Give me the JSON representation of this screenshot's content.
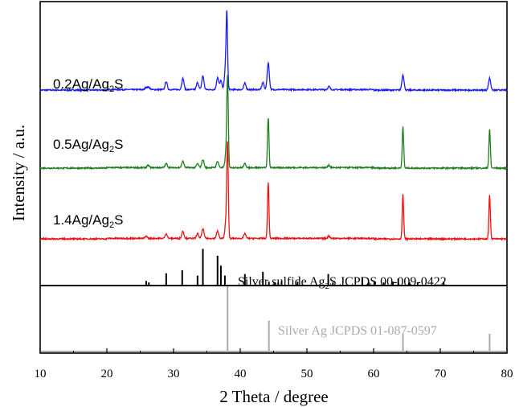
{
  "chart_data": {
    "type": "line",
    "xlabel": "2 Theta / degree",
    "ylabel": "Intensity / a.u.",
    "xlim": [
      10,
      80
    ],
    "x_ticks": [
      "10",
      "20",
      "30",
      "40",
      "50",
      "60",
      "70",
      "80"
    ],
    "colors": {
      "blue": "#1a1aff",
      "green": "#1f7f1f",
      "red": "#ee1111",
      "sulfide_ref": "#000000",
      "silver_ref": "#aaaaaa"
    },
    "series": [
      {
        "name": "0.2Ag/Ag2S",
        "label_main": "0.2Ag/Ag",
        "label_sub": "2",
        "label_end": "S",
        "color": "#1a1aff",
        "peaks": [
          {
            "x": 25.9,
            "y": 3
          },
          {
            "x": 26.3,
            "y": 3
          },
          {
            "x": 28.9,
            "y": 10
          },
          {
            "x": 31.4,
            "y": 14
          },
          {
            "x": 33.6,
            "y": 9
          },
          {
            "x": 34.4,
            "y": 17
          },
          {
            "x": 36.6,
            "y": 15
          },
          {
            "x": 37.1,
            "y": 11
          },
          {
            "x": 37.8,
            "y": 27
          },
          {
            "x": 38.0,
            "y": 86
          },
          {
            "x": 40.7,
            "y": 8
          },
          {
            "x": 43.4,
            "y": 9
          },
          {
            "x": 44.2,
            "y": 33
          },
          {
            "x": 53.3,
            "y": 4
          },
          {
            "x": 64.4,
            "y": 19
          },
          {
            "x": 77.4,
            "y": 15
          }
        ]
      },
      {
        "name": "0.5Ag/Ag2S",
        "label_main": "0.5Ag/Ag",
        "label_sub": "2",
        "label_end": "S",
        "color": "#1f7f1f",
        "peaks": [
          {
            "x": 26.2,
            "y": 3
          },
          {
            "x": 28.9,
            "y": 5
          },
          {
            "x": 31.4,
            "y": 8
          },
          {
            "x": 33.6,
            "y": 5
          },
          {
            "x": 34.4,
            "y": 10
          },
          {
            "x": 36.6,
            "y": 8
          },
          {
            "x": 37.9,
            "y": 20
          },
          {
            "x": 38.1,
            "y": 106
          },
          {
            "x": 40.7,
            "y": 5
          },
          {
            "x": 44.2,
            "y": 62
          },
          {
            "x": 53.3,
            "y": 3
          },
          {
            "x": 64.4,
            "y": 51
          },
          {
            "x": 77.4,
            "y": 48
          }
        ]
      },
      {
        "name": "1.4Ag/Ag2S",
        "label_main": "1.4Ag/Ag",
        "label_sub": "2",
        "label_end": "S",
        "color": "#ee1111",
        "peaks": [
          {
            "x": 25.9,
            "y": 3
          },
          {
            "x": 28.9,
            "y": 6
          },
          {
            "x": 31.4,
            "y": 9
          },
          {
            "x": 33.6,
            "y": 6
          },
          {
            "x": 34.4,
            "y": 12
          },
          {
            "x": 36.6,
            "y": 9
          },
          {
            "x": 37.9,
            "y": 25
          },
          {
            "x": 38.1,
            "y": 110
          },
          {
            "x": 40.7,
            "y": 6
          },
          {
            "x": 44.2,
            "y": 69
          },
          {
            "x": 53.3,
            "y": 3
          },
          {
            "x": 64.4,
            "y": 55
          },
          {
            "x": 77.4,
            "y": 55
          }
        ]
      }
    ],
    "references": [
      {
        "name": "Silver sulfide Ag2S JCPDS 00-009-0422",
        "label_main": "Silver sulfide Ag",
        "label_sub": "2",
        "label_end": "S JCPDS 00-009-0422",
        "color": "#000000",
        "lines": [
          {
            "x": 25.9,
            "y": 5
          },
          {
            "x": 26.3,
            "y": 3
          },
          {
            "x": 28.9,
            "y": 15
          },
          {
            "x": 31.3,
            "y": 19
          },
          {
            "x": 33.6,
            "y": 12
          },
          {
            "x": 34.4,
            "y": 47
          },
          {
            "x": 36.6,
            "y": 38
          },
          {
            "x": 37.1,
            "y": 25
          },
          {
            "x": 37.7,
            "y": 12
          },
          {
            "x": 40.7,
            "y": 14
          },
          {
            "x": 43.4,
            "y": 17
          },
          {
            "x": 44.3,
            "y": 4
          },
          {
            "x": 45.1,
            "y": 3
          },
          {
            "x": 45.7,
            "y": 3
          },
          {
            "x": 46.2,
            "y": 5
          },
          {
            "x": 48.6,
            "y": 4
          },
          {
            "x": 53.2,
            "y": 14
          },
          {
            "x": 53.9,
            "y": 3
          },
          {
            "x": 58.3,
            "y": 9
          },
          {
            "x": 59.3,
            "y": 3
          },
          {
            "x": 60.1,
            "y": 4
          },
          {
            "x": 61.5,
            "y": 3
          },
          {
            "x": 62.9,
            "y": 4
          },
          {
            "x": 63.7,
            "y": 8
          },
          {
            "x": 65.4,
            "y": 3
          },
          {
            "x": 66.6,
            "y": 3
          },
          {
            "x": 70.5,
            "y": 4
          }
        ]
      },
      {
        "name": "Silver Ag JCPDS 01-087-0597",
        "label_main": "Silver Ag JCPDS 01-087-0597",
        "color": "#aaaaaa",
        "lines": [
          {
            "x": 38.1,
            "y": 100
          },
          {
            "x": 44.3,
            "y": 48
          },
          {
            "x": 64.4,
            "y": 28
          },
          {
            "x": 77.4,
            "y": 28
          }
        ]
      }
    ]
  }
}
